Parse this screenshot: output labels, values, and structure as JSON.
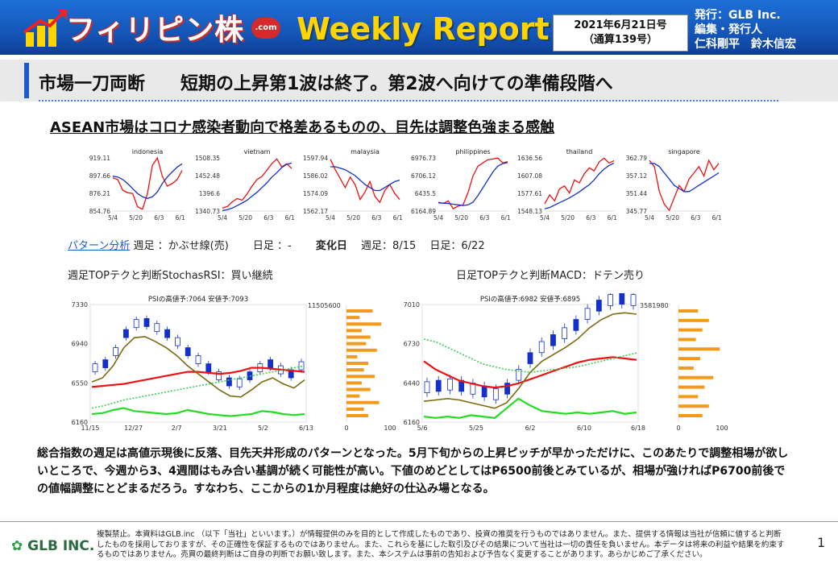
{
  "header": {
    "brand": "フィリピン株",
    "com_badge": ".com",
    "weekly": "Weekly Report",
    "issue_date": "2021年6月21日号",
    "issue_no": "（通算139号）",
    "publisher_1": "発行：GLB Inc.",
    "publisher_2": "編集・発行人",
    "publisher_3": "仁科剛平　鈴木信宏"
  },
  "title": {
    "main": "市場一刀両断　　短期の上昇第1波は終了。第2波へ向けての準備段階へ"
  },
  "subtitle": "ASEAN市場はコロナ感染者動向で格差あるものの、目先は調整色強まる感触",
  "pattern": {
    "link": "パターン分析",
    "weekly_foot": "週足 ：かぶせ線(売)",
    "daily_foot": "日足 ：-",
    "change_day": "変化日",
    "change_weekly": "週足：8/15",
    "change_daily": "日足：6/22"
  },
  "caption_left": "週足TOPテクと判断StochasRSI：買い継続",
  "caption_right": "日足TOPテクと判断MACD：ドテン売り",
  "summary": "総合指数の週足は高値示現後に反落、目先天井形成のパターンとなった。5月下旬からの上昇ピッチが早かっただけに、このあたりで調整相場が欲しいところで、今週から3、4週間はもみ合い基調が続く可能性が高い。下値のめどとしてはP6500前後とみているが、相場が強ければP6700前後での値幅調整にとどまるだろう。すなわち、ここからの1か月程度は絶好の仕込み場となる。",
  "footer": {
    "company": "GLB INC.",
    "disclaimer": "複製禁止。本資料はGLB.inc （以下「当社」といいます。）が情報提供のみを目的として作成したものであり、投資の推奨を行うものではありません。また、提供する情報は当社が信頼に値すると判断したものを採用しておりますが、その正確性を保証するものではありません。また、これらを基にした取引及びその結果について当社は一切の責任を負いません。本データは将来の利益や結果を約束するものではありません。売買の最終判断はご自身の判断でお願い致します。また、本システムは事前の告知および予告なく変更することがあります。あらかじめご了承ください。",
    "page": "1"
  },
  "colors": {
    "banner": "#1456b8",
    "red": "#e11",
    "blue": "#1530c8",
    "olive": "#7a6a10",
    "green": "#22dd22",
    "orange": "#f39a1b"
  },
  "chart_data": [
    {
      "type": "line",
      "title": "indonesia",
      "yticks": [
        "919.11",
        "897.66",
        "876.21",
        "854.76"
      ],
      "xticks": [
        "5/4",
        "5/20",
        "6/3",
        "6/17"
      ],
      "series": [
        {
          "values": [
            895,
            893,
            880,
            877,
            876,
            860,
            857,
            876,
            910,
            919,
            897,
            885,
            888,
            893,
            904
          ]
        },
        {
          "values": [
            897,
            896,
            893,
            888,
            882,
            876,
            872,
            870,
            872,
            878,
            888,
            896,
            902,
            908,
            912
          ]
        }
      ]
    },
    {
      "type": "line",
      "title": "vietnam",
      "yticks": [
        "1508.35",
        "1452.48",
        "1396.6",
        "1340.73"
      ],
      "xticks": [
        "5/4",
        "5/20",
        "6/3",
        "6/17"
      ],
      "series": [
        {
          "values": [
            1350,
            1355,
            1370,
            1380,
            1375,
            1395,
            1420,
            1440,
            1450,
            1470,
            1490,
            1505,
            1480,
            1490,
            1475
          ]
        },
        {
          "values": [
            1342,
            1345,
            1350,
            1358,
            1366,
            1375,
            1388,
            1400,
            1415,
            1430,
            1448,
            1462,
            1478,
            1488,
            1492
          ]
        }
      ]
    },
    {
      "type": "line",
      "title": "malaysia",
      "yticks": [
        "1597.94",
        "1586.02",
        "1574.09",
        "1562.17"
      ],
      "xticks": [
        "5/4",
        "5/20",
        "6/3",
        "6/17"
      ],
      "series": [
        {
          "values": [
            1597,
            1590,
            1584,
            1578,
            1585,
            1580,
            1570,
            1575,
            1582,
            1572,
            1568,
            1576,
            1580,
            1574,
            1570
          ]
        },
        {
          "values": [
            1592,
            1592,
            1591,
            1590,
            1588,
            1586,
            1583,
            1580,
            1578,
            1576,
            1576,
            1578,
            1580,
            1582,
            1583
          ]
        }
      ]
    },
    {
      "type": "line",
      "title": "philippines",
      "yticks": [
        "6976.73",
        "6706.12",
        "6435.5",
        "6164.89"
      ],
      "xticks": [
        "5/4",
        "5/20",
        "6/3",
        "6/17"
      ],
      "series": [
        {
          "values": [
            6300,
            6280,
            6320,
            6200,
            6240,
            6260,
            6450,
            6700,
            6850,
            6900,
            6950,
            6960,
            6976,
            6900,
            6920
          ]
        },
        {
          "values": [
            6290,
            6285,
            6280,
            6270,
            6260,
            6250,
            6260,
            6300,
            6400,
            6520,
            6640,
            6760,
            6850,
            6890,
            6905
          ]
        }
      ]
    },
    {
      "type": "line",
      "title": "thailand",
      "yticks": [
        "1636.56",
        "1607.08",
        "1577.61",
        "1548.13"
      ],
      "xticks": [
        "5/4",
        "5/20",
        "6/3",
        "6/17"
      ],
      "series": [
        {
          "values": [
            1560,
            1575,
            1565,
            1585,
            1590,
            1578,
            1600,
            1595,
            1610,
            1620,
            1615,
            1630,
            1636,
            1628,
            1632
          ]
        },
        {
          "values": [
            1552,
            1554,
            1558,
            1562,
            1566,
            1570,
            1575,
            1580,
            1586,
            1592,
            1600,
            1610,
            1618,
            1624,
            1628
          ]
        }
      ]
    },
    {
      "type": "line",
      "title": "singapore",
      "yticks": [
        "362.79",
        "357.12",
        "351.44",
        "345.77"
      ],
      "xticks": [
        "5/4",
        "5/20",
        "6/3",
        "6/17"
      ],
      "series": [
        {
          "values": [
            362,
            360,
            352,
            348,
            346,
            350,
            354,
            352,
            356,
            358,
            360,
            357,
            362,
            359,
            361
          ]
        },
        {
          "values": [
            361,
            361,
            360,
            358,
            356,
            354,
            353,
            352,
            352,
            353,
            354,
            355,
            356,
            357,
            358
          ]
        }
      ]
    },
    {
      "type": "candlestick",
      "title": "PSIの高値予:7064 安値予:7093",
      "yticks": [
        "7330",
        "6940",
        "6550",
        "6160"
      ],
      "xticks": [
        "11/15",
        "12/27",
        "2/7",
        "3/21",
        "5/2",
        "6/13"
      ],
      "y2": "11505600",
      "bar_xticks": [
        "0",
        "100"
      ],
      "series": [
        {
          "name": "red",
          "values": [
            6510,
            6520,
            6530,
            6540,
            6560,
            6580,
            6600,
            6620,
            6640,
            6660,
            6660,
            6650,
            6640,
            6650,
            6670,
            6700,
            6700,
            6690,
            6680,
            6670,
            6660
          ]
        },
        {
          "name": "olive",
          "values": [
            6560,
            6600,
            6720,
            6900,
            7000,
            7010,
            6960,
            6900,
            6820,
            6720,
            6640,
            6560,
            6480,
            6420,
            6410,
            6480,
            6560,
            6600,
            6540,
            6500,
            6580
          ]
        },
        {
          "name": "green",
          "values": [
            6240,
            6250,
            6280,
            6300,
            6270,
            6260,
            6250,
            6240,
            6250,
            6280,
            6260,
            6240,
            6230,
            6220,
            6230,
            6240,
            6270,
            6260,
            6240,
            6230,
            6240
          ]
        },
        {
          "name": "dotted",
          "values": [
            6300,
            6320,
            6350,
            6380,
            6400,
            6420,
            6440,
            6460,
            6480,
            6500,
            6520,
            6540,
            6560,
            6580,
            6600,
            6620,
            6640,
            6660,
            6680,
            6700,
            6720
          ]
        }
      ],
      "bars": [
        60,
        30,
        80,
        35,
        55,
        45,
        70,
        25,
        50,
        40,
        65,
        35,
        55,
        30,
        75,
        40,
        50
      ]
    },
    {
      "type": "candlestick",
      "title": "PSIの高値予:6982 安値予:6895",
      "yticks": [
        "7010",
        "6730",
        "6440",
        "6160"
      ],
      "xticks": [
        "5/6",
        "5/25",
        "6/2",
        "6/10",
        "6/18"
      ],
      "y2": "3581980",
      "bar_xticks": [
        "0",
        "100"
      ],
      "series": [
        {
          "name": "red",
          "values": [
            6600,
            6540,
            6500,
            6460,
            6440,
            6420,
            6410,
            6420,
            6440,
            6470,
            6500,
            6530,
            6560,
            6590,
            6610,
            6620,
            6630,
            6620,
            6610
          ]
        },
        {
          "name": "olive",
          "values": [
            6310,
            6320,
            6330,
            6320,
            6300,
            6280,
            6260,
            6300,
            6400,
            6520,
            6600,
            6650,
            6700,
            6760,
            6840,
            6900,
            6940,
            6950,
            6940
          ]
        },
        {
          "name": "green",
          "values": [
            6200,
            6190,
            6200,
            6190,
            6210,
            6200,
            6190,
            6260,
            6330,
            6280,
            6240,
            6230,
            6220,
            6230,
            6220,
            6230,
            6240,
            6220,
            6230
          ]
        },
        {
          "name": "dotted",
          "values": [
            6760,
            6740,
            6700,
            6660,
            6620,
            6580,
            6560,
            6540,
            6530,
            6520,
            6530,
            6540,
            6550,
            6560,
            6580,
            6600,
            6620,
            6640,
            6660
          ]
        }
      ],
      "bars": [
        45,
        70,
        55,
        40,
        95,
        50,
        35,
        80,
        60,
        45,
        70,
        55
      ]
    }
  ]
}
